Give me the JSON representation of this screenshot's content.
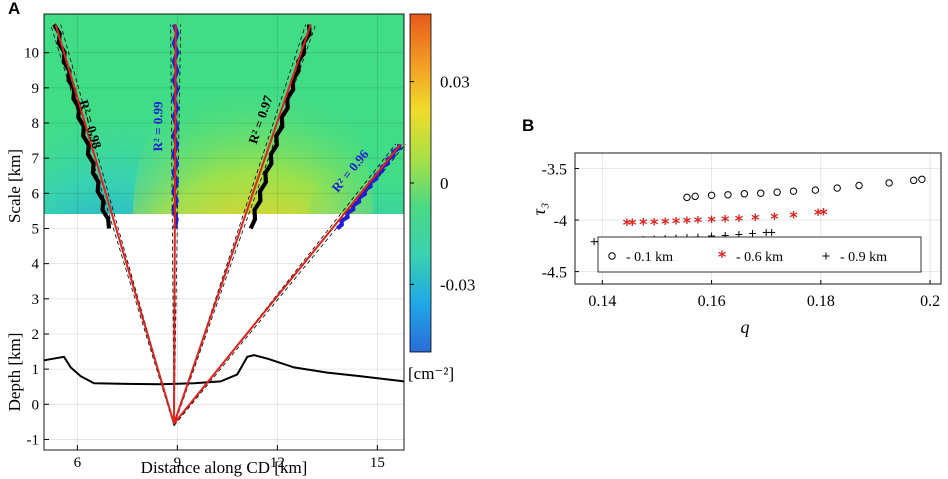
{
  "chart_data": [
    {
      "panel_label": "A",
      "type": "heatmap",
      "xlabel": "Distance along CD [km]",
      "ylabel_top": "Scale [km]",
      "ylabel_bottom": "Depth [km]",
      "xlim": [
        5,
        15.8
      ],
      "ylim": [
        -1.3,
        11.1
      ],
      "x_ticks": [
        "6",
        "9",
        "12",
        "15"
      ],
      "scale_ticks": [
        "5",
        "6",
        "7",
        "8",
        "9",
        "10"
      ],
      "depth_ticks": [
        "-1",
        "0",
        "1",
        "2",
        "3",
        "4"
      ],
      "colorbar": {
        "ticks": [
          "0.03",
          "0",
          "-0.03"
        ],
        "tick_values": [
          0.03,
          0,
          -0.03
        ],
        "range": [
          -0.05,
          0.05
        ],
        "unit_label": "[cm⁻²]",
        "colors": [
          "#2a6cd6",
          "#1ea8e8",
          "#3ad1b0",
          "#4ad985",
          "#a8e044",
          "#f0dc2a",
          "#f39a24",
          "#e65a1c"
        ]
      },
      "source_point": {
        "x": 8.9,
        "depth": -0.55
      },
      "fit_lines": [
        {
          "label": "R² = 0.98",
          "color": "#000000",
          "top_x": 5.35,
          "scale_top": 10.8,
          "x_at_5km": 6.95
        },
        {
          "label": "R² = 0.99",
          "color": "#1f1fd0",
          "top_x": 8.95,
          "scale_top": 10.8,
          "x_at_5km": 8.93
        },
        {
          "label": "R² = 0.97",
          "color": "#000000",
          "top_x": 13.0,
          "scale_top": 10.8,
          "x_at_5km": 11.2
        },
        {
          "label": "R² = 0.96",
          "color": "#1f1fd0",
          "top_x": 15.7,
          "scale_top": 7.4,
          "x_at_5km": 13.8
        }
      ],
      "relief_profile": {
        "x": [
          5.0,
          5.6,
          5.8,
          6.1,
          6.5,
          7.5,
          8.5,
          9.5,
          10.3,
          10.8,
          11.1,
          11.3,
          11.7,
          12.5,
          13.5,
          14.5,
          15.8
        ],
        "depth": [
          1.25,
          1.35,
          1.05,
          0.8,
          0.6,
          0.58,
          0.57,
          0.6,
          0.65,
          0.85,
          1.35,
          1.4,
          1.3,
          1.05,
          0.9,
          0.8,
          0.65
        ]
      }
    },
    {
      "panel_label": "B",
      "type": "scatter",
      "xlabel": "q",
      "ylabel": "τ₃",
      "xlim": [
        0.135,
        0.202
      ],
      "ylim": [
        -4.62,
        -3.35
      ],
      "x_ticks": [
        "0.14",
        "0.16",
        "0.18",
        "0.2"
      ],
      "y_ticks": [
        "-3.5",
        "-4",
        "-4.5"
      ],
      "series": [
        {
          "name": "- 0.1 km",
          "marker": "o",
          "color": "#000000",
          "x": [
            0.1555,
            0.157,
            0.16,
            0.163,
            0.166,
            0.169,
            0.172,
            0.175,
            0.179,
            0.183,
            0.187,
            0.1925,
            0.197,
            0.1985
          ],
          "y": [
            -3.78,
            -3.77,
            -3.76,
            -3.755,
            -3.745,
            -3.74,
            -3.73,
            -3.72,
            -3.71,
            -3.69,
            -3.665,
            -3.64,
            -3.615,
            -3.605
          ]
        },
        {
          "name": "- 0.6 km",
          "marker": "*",
          "color": "#e0211c",
          "x": [
            0.1445,
            0.1455,
            0.1475,
            0.1495,
            0.1515,
            0.1535,
            0.1555,
            0.1575,
            0.16,
            0.1625,
            0.165,
            0.168,
            0.1715,
            0.175,
            0.1795,
            0.1805
          ],
          "y": [
            -4.04,
            -4.04,
            -4.035,
            -4.035,
            -4.03,
            -4.025,
            -4.02,
            -4.015,
            -4.01,
            -4.005,
            -4.0,
            -3.99,
            -3.98,
            -3.965,
            -3.94,
            -3.935
          ]
        },
        {
          "name": "- 0.9 km",
          "marker": "+",
          "color": "#000000",
          "x": [
            0.1385,
            0.1395,
            0.1415,
            0.1435,
            0.1455,
            0.1475,
            0.1495,
            0.1515,
            0.1535,
            0.1555,
            0.1575,
            0.16,
            0.1625,
            0.165,
            0.1675,
            0.17,
            0.171
          ],
          "y": [
            -4.21,
            -4.21,
            -4.205,
            -4.2,
            -4.195,
            -4.19,
            -4.185,
            -4.18,
            -4.175,
            -4.17,
            -4.165,
            -4.155,
            -4.15,
            -4.14,
            -4.13,
            -4.12,
            -4.12
          ]
        }
      ]
    }
  ]
}
